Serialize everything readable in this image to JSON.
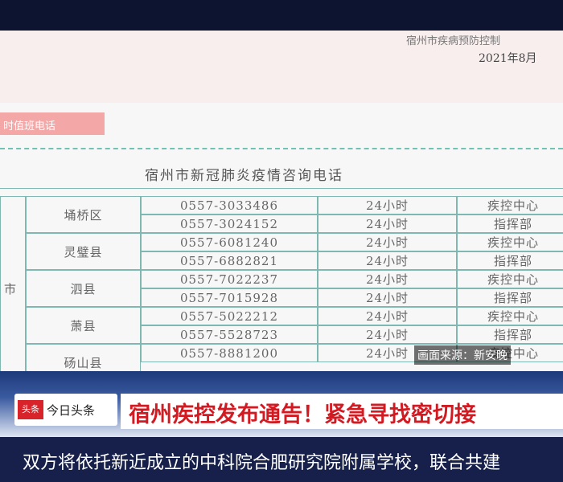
{
  "document": {
    "header_org": "宿州市疾病预防控制",
    "header_date": "2021年8月",
    "button": "时值班电话",
    "table": {
      "title": "宿州市新冠肺炎疫情咨询电话",
      "region_label": "市",
      "rows": [
        {
          "district": "埇桥区",
          "entries": [
            [
              "0557-3033486",
              "24小时",
              "疾控中心"
            ],
            [
              "0557-3024152",
              "24小时",
              "指挥部"
            ]
          ]
        },
        {
          "district": "灵璧县",
          "entries": [
            [
              "0557-6081240",
              "24小时",
              "疾控中心"
            ],
            [
              "0557-6882821",
              "24小时",
              "指挥部"
            ]
          ]
        },
        {
          "district": "泗县",
          "entries": [
            [
              "0557-7022237",
              "24小时",
              "疾控中心"
            ],
            [
              "0557-7015928",
              "24小时",
              "指挥部"
            ]
          ]
        },
        {
          "district": "萧县",
          "entries": [
            [
              "0557-5022212",
              "24小时",
              "疾控中心"
            ],
            [
              "0557-5528723",
              "24小时",
              "指挥部"
            ]
          ]
        },
        {
          "district": "砀山县",
          "entries": [
            [
              "0557-8881200",
              "24小时",
              "疾控中心"
            ]
          ]
        }
      ]
    }
  },
  "overlay": {
    "source": "画面来源：新安晚",
    "logo": "头条",
    "channel": "今日头条",
    "headline": "宿州疾控发布通告！紧急寻找密切接",
    "ticker": "双方将依托新近成立的中科院合肥研究院附属学校，联合共建"
  }
}
